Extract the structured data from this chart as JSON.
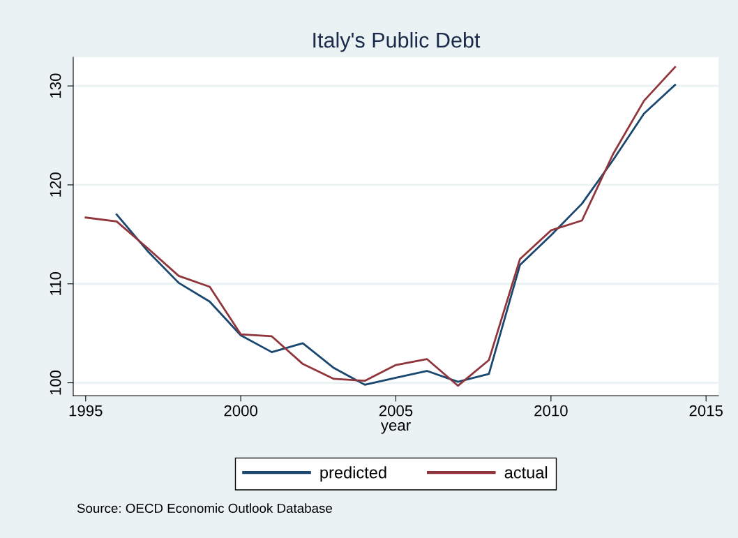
{
  "chart_data": {
    "type": "line",
    "title": "Italy's Public Debt",
    "xlabel": "year",
    "x": [
      1995,
      1996,
      1997,
      1998,
      1999,
      2000,
      2001,
      2002,
      2003,
      2004,
      2005,
      2006,
      2007,
      2008,
      2009,
      2010,
      2011,
      2012,
      2013,
      2014
    ],
    "series": [
      {
        "name": "predicted",
        "color": "#1a476f",
        "values": [
          null,
          117.0,
          113.3,
          110.1,
          108.2,
          104.8,
          103.1,
          104.0,
          101.5,
          99.8,
          100.5,
          101.2,
          100.1,
          100.9,
          111.9,
          114.9,
          118.1,
          122.5,
          127.2,
          130.1
        ]
      },
      {
        "name": "actual",
        "color": "#90353b",
        "values": [
          116.7,
          116.3,
          113.6,
          110.8,
          109.7,
          104.9,
          104.7,
          101.9,
          100.4,
          100.2,
          101.8,
          102.4,
          99.7,
          102.3,
          112.5,
          115.4,
          116.4,
          123.1,
          128.5,
          131.9
        ]
      }
    ],
    "xlim": [
      1994.6,
      2015.4
    ],
    "xticks": [
      1995,
      2000,
      2005,
      2010,
      2015
    ],
    "ylim": [
      98.7,
      132.9
    ],
    "yticks": [
      100,
      110,
      120,
      130
    ],
    "grid": "y",
    "legend": "bottom",
    "line_style": "solid",
    "marker": "none",
    "annotations": [
      "Source: OECD Economic Outlook Database"
    ]
  }
}
